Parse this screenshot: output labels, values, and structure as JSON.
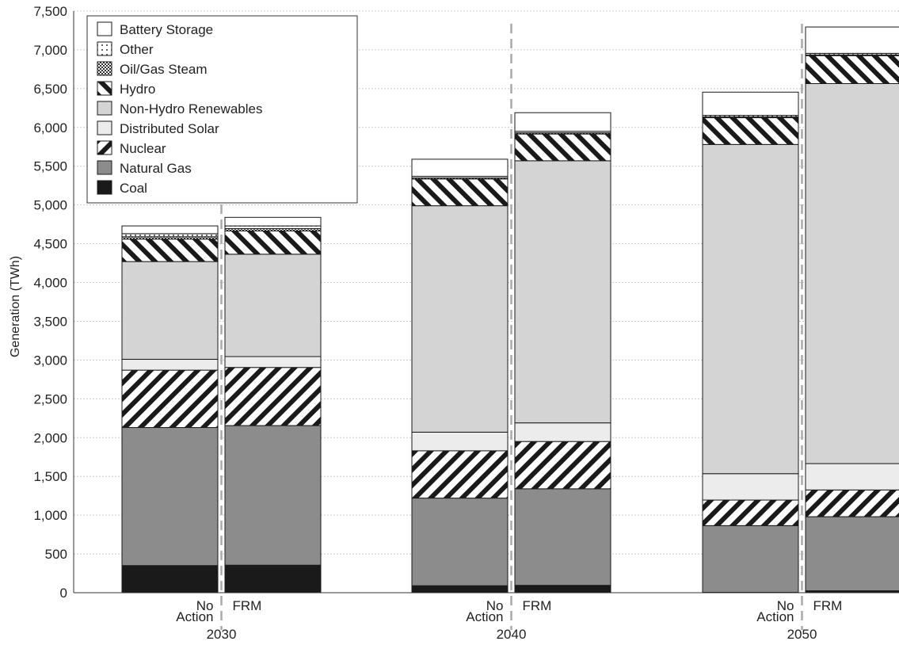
{
  "chart_data": {
    "type": "bar",
    "stacked": true,
    "title": "",
    "xlabel": "",
    "ylabel": "Generation (TWh)",
    "ylim": [
      0,
      7500
    ],
    "yticks": [
      "0",
      "500",
      "1,000",
      "1,500",
      "2,000",
      "2,500",
      "3,000",
      "3,500",
      "4,000",
      "4,500",
      "5,000",
      "5,500",
      "6,000",
      "6,500",
      "7,000",
      "7,500"
    ],
    "grid": true,
    "legend_position": "top-left",
    "groups": [
      "2030",
      "2040",
      "2050"
    ],
    "scenarios": [
      {
        "line1": "No",
        "line2": "Action"
      },
      {
        "line1": "FRM",
        "line2": ""
      }
    ],
    "categories": [
      "2030 No Action",
      "2030 FRM",
      "2040 No Action",
      "2040 FRM",
      "2050 No Action",
      "2050 FRM"
    ],
    "legend_order": [
      "Battery Storage",
      "Other",
      "Oil/Gas Steam",
      "Hydro",
      "Non-Hydro Renewables",
      "Distributed Solar",
      "Nuclear",
      "Natural Gas",
      "Coal"
    ],
    "series": [
      {
        "name": "Coal",
        "pattern": "solid-black",
        "color": "#1a1a1a",
        "values": [
          350,
          355,
          90,
          95,
          5,
          25
        ]
      },
      {
        "name": "Natural Gas",
        "pattern": "solid-gray",
        "color": "#8c8c8c",
        "values": [
          1780,
          1800,
          1130,
          1245,
          860,
          955
        ]
      },
      {
        "name": "Nuclear",
        "pattern": "diagonal-stripes",
        "color": "#1a1a1a",
        "values": [
          740,
          750,
          610,
          610,
          330,
          345
        ]
      },
      {
        "name": "Distributed Solar",
        "pattern": "very-light-gray",
        "color": "#ececec",
        "values": [
          140,
          140,
          240,
          240,
          340,
          340
        ]
      },
      {
        "name": "Non-Hydro Renewables",
        "pattern": "light-gray",
        "color": "#d4d4d4",
        "values": [
          1260,
          1320,
          2920,
          3380,
          4245,
          4900
        ]
      },
      {
        "name": "Hydro",
        "pattern": "reverse-diagonal-stripes",
        "color": "#1a1a1a",
        "values": [
          290,
          300,
          345,
          345,
          345,
          360
        ]
      },
      {
        "name": "Oil/Gas Steam",
        "pattern": "crosshatch",
        "color": "#333333",
        "values": [
          30,
          30,
          15,
          15,
          10,
          10
        ]
      },
      {
        "name": "Other",
        "pattern": "dots",
        "color": "#333333",
        "values": [
          40,
          35,
          20,
          20,
          20,
          20
        ]
      },
      {
        "name": "Battery Storage",
        "pattern": "white",
        "color": "#ffffff",
        "values": [
          100,
          110,
          220,
          240,
          300,
          340
        ]
      }
    ]
  }
}
